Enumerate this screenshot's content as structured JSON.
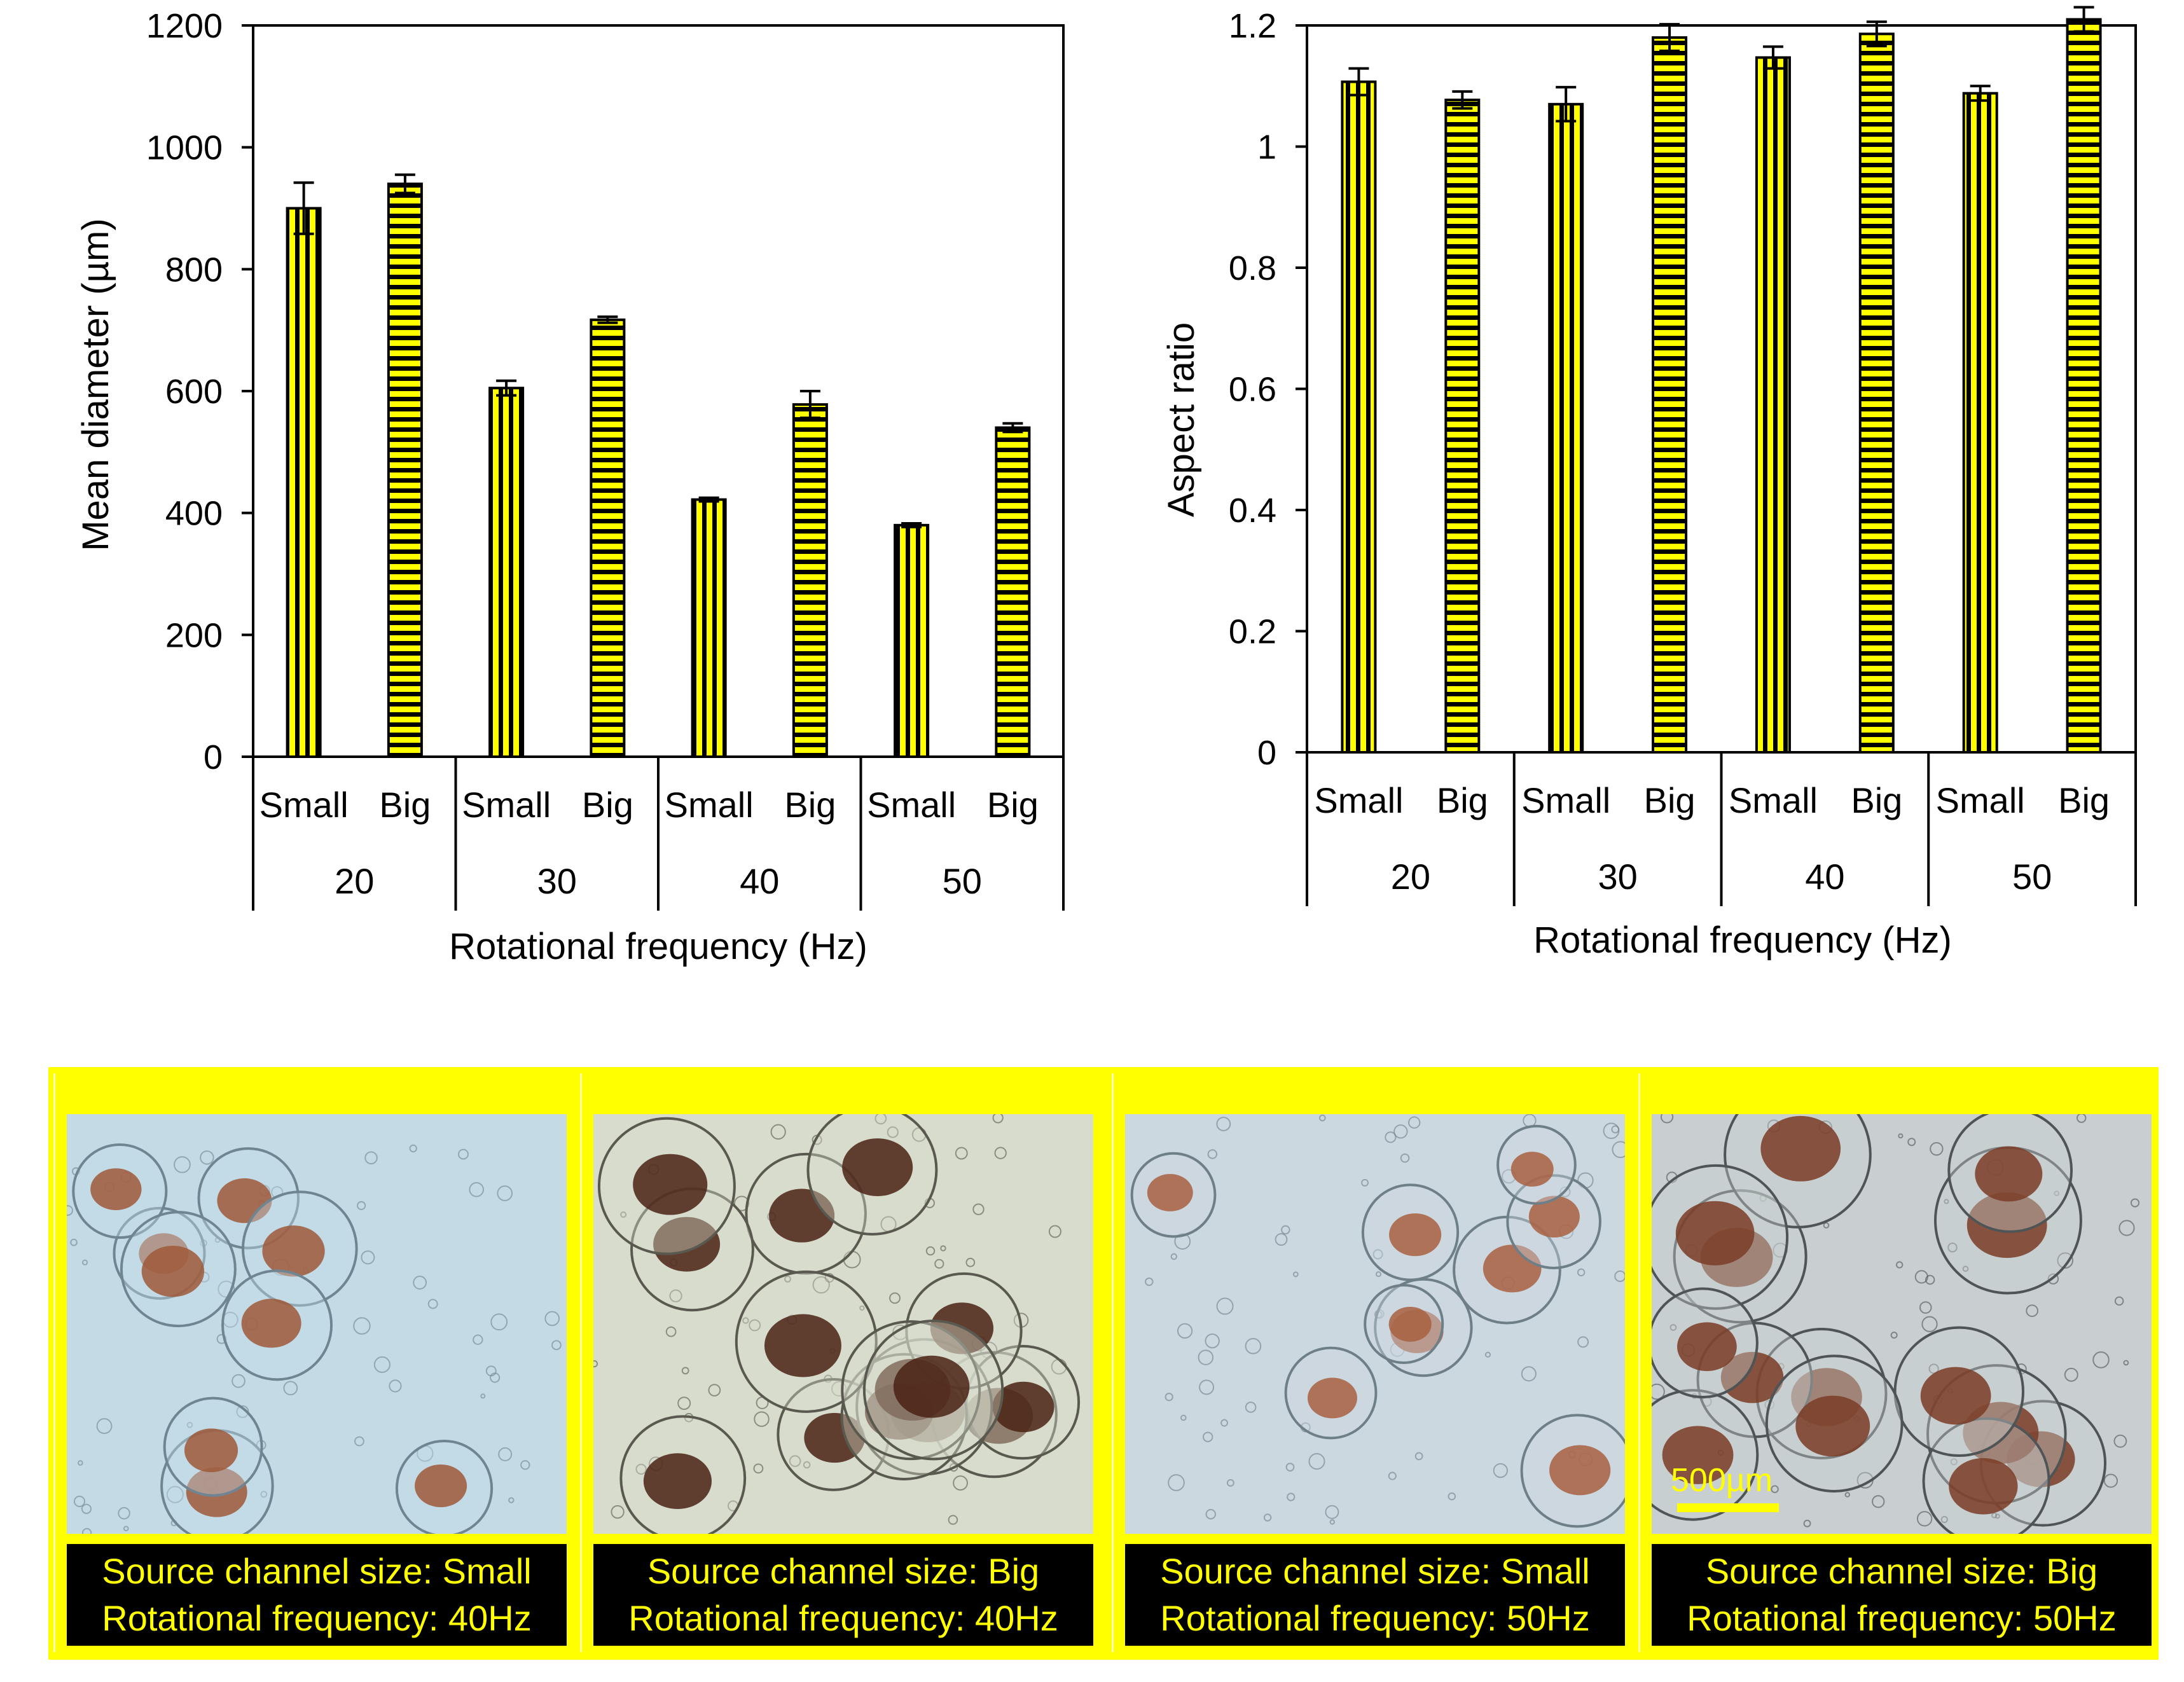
{
  "chart_data": [
    {
      "type": "bar",
      "ylabel": "Mean diameter (µm)",
      "xlabel": "Rotational frequency (Hz)",
      "ylim": [
        0,
        1200
      ],
      "yticks": [
        "0",
        "200",
        "400",
        "600",
        "800",
        "1000",
        "1200"
      ],
      "groups": [
        "20",
        "30",
        "40",
        "50"
      ],
      "categories": [
        "Small",
        "Big",
        "Small",
        "Big",
        "Small",
        "Big",
        "Small",
        "Big"
      ],
      "values": [
        900,
        940,
        605,
        717,
        422,
        578,
        380,
        540
      ],
      "errors": [
        42,
        15,
        12,
        5,
        3,
        22,
        3,
        7
      ],
      "patterns": [
        "vertical",
        "horizontal",
        "vertical",
        "horizontal",
        "vertical",
        "horizontal",
        "vertical",
        "horizontal"
      ]
    },
    {
      "type": "bar",
      "ylabel": "Aspect ratio",
      "xlabel": "Rotational frequency (Hz)",
      "ylim": [
        0,
        1.2
      ],
      "yticks": [
        "0",
        "0.2",
        "0.4",
        "0.6",
        "0.8",
        "1",
        "1.2"
      ],
      "groups": [
        "20",
        "30",
        "40",
        "50"
      ],
      "categories": [
        "Small",
        "Big",
        "Small",
        "Big",
        "Small",
        "Big",
        "Small",
        "Big"
      ],
      "values": [
        1.107,
        1.077,
        1.07,
        1.18,
        1.147,
        1.186,
        1.088,
        1.21
      ],
      "errors": [
        0.022,
        0.014,
        0.028,
        0.022,
        0.018,
        0.02,
        0.012,
        0.02
      ],
      "patterns": [
        "vertical",
        "horizontal",
        "vertical",
        "horizontal",
        "vertical",
        "horizontal",
        "vertical",
        "horizontal"
      ]
    }
  ],
  "colors": {
    "bar_fill": "#ffff00",
    "bar_stripe": "#000000",
    "frame": "#ffff00",
    "caption_bg": "#000000",
    "caption_text": "#ffff00"
  },
  "micrographs": [
    {
      "line1": "Source channel size: Small",
      "line2": "Rotational frequency: 40Hz",
      "bg": "#c4dbe6",
      "blob": "#a0583a",
      "ring": "#6f8592"
    },
    {
      "line1": "Source channel size: Big",
      "line2": "Rotational frequency: 40Hz",
      "bg": "#d8dccd",
      "blob": "#4a2214",
      "ring": "#59594f"
    },
    {
      "line1": "Source channel size: Small",
      "line2": "Rotational frequency: 50Hz",
      "bg": "#ccd8e0",
      "blob": "#a86040",
      "ring": "#6f7f88"
    },
    {
      "line1": "Source channel size: Big",
      "line2": "Rotational frequency: 50Hz",
      "bg": "#c9cfd0",
      "blob": "#7a3c26",
      "ring": "#4f5456"
    }
  ],
  "scale_bar_label": "500µm"
}
